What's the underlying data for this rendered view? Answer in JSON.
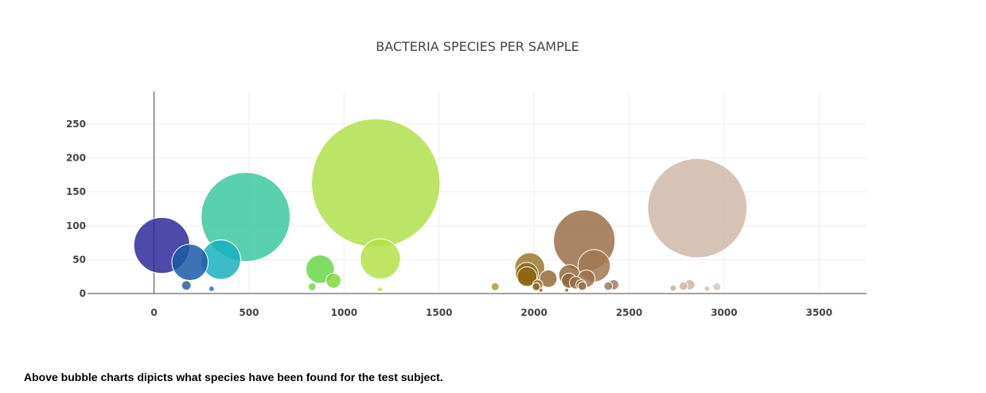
{
  "chart_data": {
    "type": "scatter",
    "title": "BACTERIA SPECIES PER SAMPLE",
    "xlabel": "",
    "ylabel": "",
    "xlim": [
      -350,
      3750
    ],
    "ylim": [
      0,
      298
    ],
    "x_ticks": [
      0,
      500,
      1000,
      1500,
      2000,
      2500,
      3000,
      3500
    ],
    "y_ticks": [
      0,
      50,
      100,
      150,
      200,
      250
    ],
    "grid": true,
    "legend": "none",
    "series": [
      {
        "points": [
          {
            "x": 41,
            "y": 71,
            "size": 71,
            "color": "#2e2a9b"
          },
          {
            "x": 189,
            "y": 46,
            "size": 46,
            "color": "#1b5aa6"
          },
          {
            "x": 170,
            "y": 12,
            "size": 12,
            "color": "#2c5fa8"
          },
          {
            "x": 303,
            "y": 7,
            "size": 7,
            "color": "#2f73b8"
          },
          {
            "x": 352,
            "y": 50,
            "size": 50,
            "color": "#19b0c0"
          },
          {
            "x": 482,
            "y": 113,
            "size": 113,
            "color": "#3cc8a0"
          },
          {
            "x": 874,
            "y": 36,
            "size": 36,
            "color": "#6bd64a"
          },
          {
            "x": 832,
            "y": 10,
            "size": 10,
            "color": "#7ad646"
          },
          {
            "x": 944,
            "y": 19,
            "size": 19,
            "color": "#82d838"
          },
          {
            "x": 1167,
            "y": 163,
            "size": 163,
            "color": "#b0e14c"
          },
          {
            "x": 1191,
            "y": 51,
            "size": 51,
            "color": "#b5e04a"
          },
          {
            "x": 1189,
            "y": 6,
            "size": 6,
            "color": "#bce055"
          },
          {
            "x": 1795,
            "y": 10,
            "size": 10,
            "color": "#b09838"
          },
          {
            "x": 1977,
            "y": 38,
            "size": 38,
            "color": "#9a7a2a"
          },
          {
            "x": 1962,
            "y": 29,
            "size": 29,
            "color": "#8e6a1a"
          },
          {
            "x": 1963,
            "y": 25,
            "size": 25,
            "color": "#8a6612"
          },
          {
            "x": 2019,
            "y": 13,
            "size": 13,
            "color": "#94702a"
          },
          {
            "x": 2011,
            "y": 10,
            "size": 10,
            "color": "#8c6a22"
          },
          {
            "x": 2075,
            "y": 22,
            "size": 22,
            "color": "#956b3a"
          },
          {
            "x": 2264,
            "y": 78,
            "size": 78,
            "color": "#9a7048"
          },
          {
            "x": 2316,
            "y": 41,
            "size": 41,
            "color": "#a07852"
          },
          {
            "x": 2186,
            "y": 27,
            "size": 27,
            "color": "#946a3e"
          },
          {
            "x": 2275,
            "y": 22,
            "size": 22,
            "color": "#9c7250"
          },
          {
            "x": 2184,
            "y": 19,
            "size": 19,
            "color": "#8e6636"
          },
          {
            "x": 2219,
            "y": 16,
            "size": 16,
            "color": "#976e44"
          },
          {
            "x": 2247,
            "y": 13,
            "size": 13,
            "color": "#986f47"
          },
          {
            "x": 2254,
            "y": 11,
            "size": 11,
            "color": "#9a7149"
          },
          {
            "x": 2390,
            "y": 11,
            "size": 11,
            "color": "#a07c62"
          },
          {
            "x": 2419,
            "y": 13,
            "size": 13,
            "color": "#a27e64"
          },
          {
            "x": 2859,
            "y": 126,
            "size": 126,
            "color": "#cfb9a8"
          },
          {
            "x": 2819,
            "y": 13,
            "size": 13,
            "color": "#ccb6a5"
          },
          {
            "x": 2786,
            "y": 11,
            "size": 11,
            "color": "#cbb6a5"
          },
          {
            "x": 2732,
            "y": 8,
            "size": 8,
            "color": "#c4ab98"
          },
          {
            "x": 2962,
            "y": 10,
            "size": 10,
            "color": "#d8c6b8"
          },
          {
            "x": 2910,
            "y": 7,
            "size": 7,
            "color": "#d4c2b4"
          },
          {
            "x": 2172,
            "y": 5,
            "size": 5,
            "color": "#8e6636"
          },
          {
            "x": 2036,
            "y": 5,
            "size": 5,
            "color": "#8c6a22"
          }
        ]
      }
    ]
  },
  "caption": "Above bubble charts dipicts what species have been found for the test subject."
}
